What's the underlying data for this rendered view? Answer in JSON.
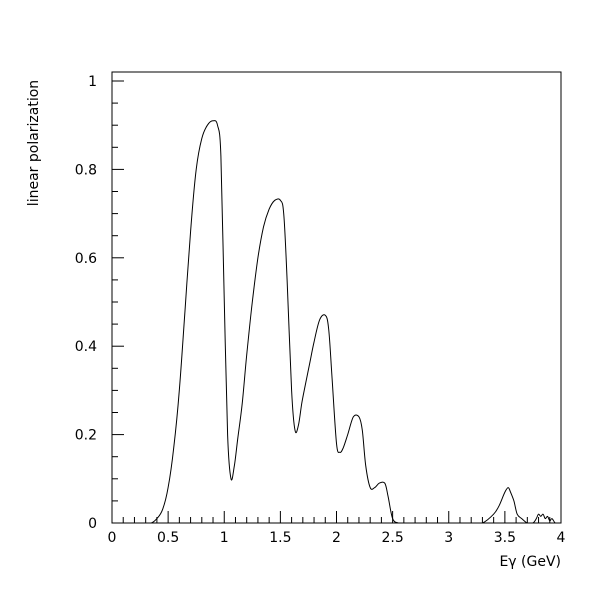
{
  "chart_data": {
    "type": "line",
    "title": "",
    "xlabel": "Eγ (GeV)",
    "ylabel": "linear polarization",
    "xlim": [
      0,
      4
    ],
    "ylim": [
      0,
      1.02
    ],
    "grid": false,
    "legend": "none",
    "line_color": "#000000",
    "x_ticks": [
      0,
      0.5,
      1,
      1.5,
      2,
      2.5,
      3,
      3.5,
      4
    ],
    "x_tick_labels": [
      "0",
      "0.5",
      "1",
      "1.5",
      "2",
      "2.5",
      "3",
      "3.5",
      "4"
    ],
    "y_ticks": [
      0,
      0.2,
      0.4,
      0.6,
      0.8,
      1
    ],
    "y_tick_labels": [
      "0",
      "0.2",
      "0.4",
      "0.6",
      "0.8",
      "1"
    ],
    "series": [
      {
        "x": [
          0.3,
          0.35,
          0.4,
          0.45,
          0.5,
          0.55,
          0.6,
          0.65,
          0.7,
          0.75,
          0.8,
          0.85,
          0.9,
          0.94,
          0.97,
          1.0,
          1.03,
          1.06,
          1.09,
          1.12,
          1.16,
          1.2,
          1.25,
          1.3,
          1.35,
          1.4,
          1.45,
          1.5,
          1.53,
          1.56,
          1.6,
          1.63,
          1.66,
          1.69,
          1.72,
          1.76,
          1.8,
          1.85,
          1.9,
          1.93,
          1.96,
          2.0,
          2.03,
          2.06,
          2.1,
          2.15,
          2.2,
          2.23,
          2.26,
          2.3,
          2.34,
          2.38,
          2.43,
          2.46,
          2.5,
          2.55,
          2.6,
          2.65,
          2.7,
          2.8,
          2.9,
          3.0,
          3.1,
          3.2,
          3.3,
          3.4,
          3.45,
          3.5,
          3.53,
          3.55,
          3.58,
          3.61,
          3.65,
          3.7,
          3.75,
          3.78,
          3.8,
          3.82,
          3.84,
          3.86,
          3.88,
          3.9,
          3.92,
          3.95,
          4.0
        ],
        "y": [
          0,
          0,
          0.01,
          0.03,
          0.08,
          0.17,
          0.3,
          0.48,
          0.66,
          0.8,
          0.87,
          0.9,
          0.91,
          0.9,
          0.83,
          0.5,
          0.2,
          0.1,
          0.13,
          0.19,
          0.27,
          0.38,
          0.5,
          0.6,
          0.67,
          0.71,
          0.73,
          0.73,
          0.7,
          0.55,
          0.3,
          0.21,
          0.22,
          0.27,
          0.31,
          0.36,
          0.41,
          0.46,
          0.47,
          0.44,
          0.33,
          0.18,
          0.16,
          0.17,
          0.2,
          0.24,
          0.24,
          0.21,
          0.13,
          0.08,
          0.08,
          0.09,
          0.09,
          0.06,
          0.01,
          0,
          0,
          0,
          0,
          0,
          0,
          0,
          0,
          0,
          0,
          0.02,
          0.04,
          0.07,
          0.08,
          0.07,
          0.05,
          0.02,
          0.01,
          0,
          0,
          0.01,
          0.02,
          0.015,
          0.02,
          0.01,
          0.015,
          0.005,
          0.01,
          0,
          0
        ]
      }
    ]
  }
}
